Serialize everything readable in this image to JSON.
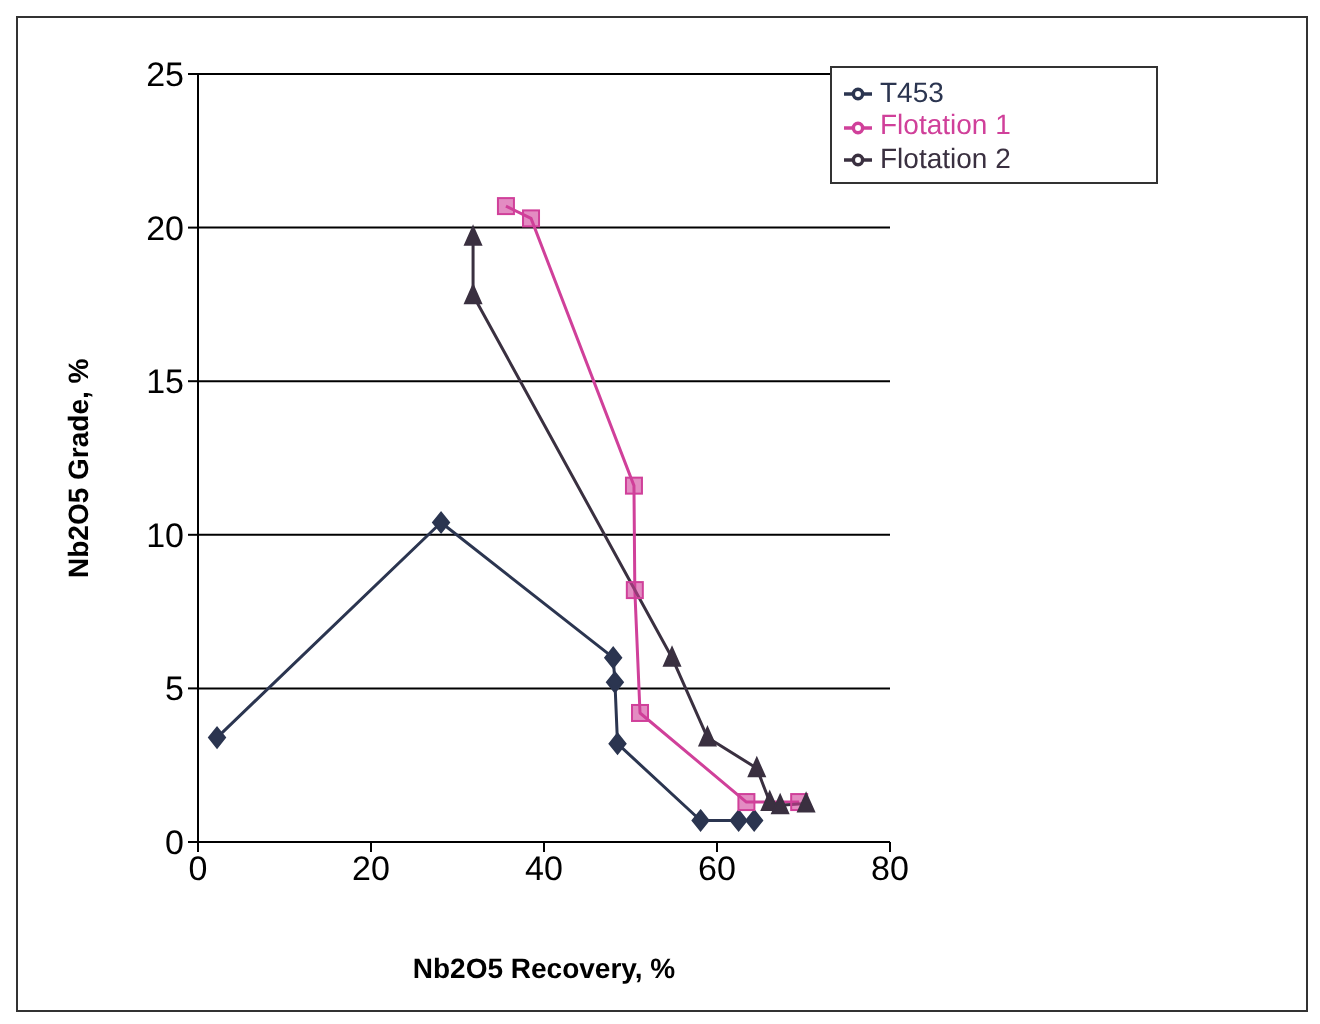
{
  "chart_data": {
    "type": "line",
    "xlabel": "Nb2O5 Recovery, %",
    "ylabel": "Nb2O5 Grade, %",
    "xlim": [
      0,
      80
    ],
    "xticks": [
      0,
      20,
      40,
      60,
      80
    ],
    "ylim": [
      0,
      25
    ],
    "yticks": [
      0,
      5,
      10,
      15,
      20,
      25
    ],
    "grid": "y",
    "legend": "top right",
    "series": [
      {
        "name": "T453",
        "color": "#2b3550",
        "marker": "diamond",
        "x": [
          2.2,
          28.1,
          48.0,
          48.2,
          48.5,
          58.1,
          62.5,
          64.3
        ],
        "values": [
          3.4,
          10.4,
          6.0,
          5.2,
          3.2,
          0.7,
          0.7,
          0.7
        ]
      },
      {
        "name": "Flotation 1",
        "color": "#d0409a",
        "marker": "square",
        "x": [
          35.6,
          38.5,
          50.4,
          50.5,
          51.1,
          63.4,
          69.5
        ],
        "values": [
          20.7,
          20.3,
          11.6,
          8.2,
          4.2,
          1.3,
          1.3
        ]
      },
      {
        "name": "Flotation 2",
        "color": "#3a3040",
        "marker": "triangle",
        "x": [
          31.8,
          31.8,
          54.8,
          58.9,
          64.6,
          66.1,
          67.3,
          70.3
        ],
        "values": [
          19.7,
          17.8,
          6.0,
          3.4,
          2.4,
          1.3,
          1.2,
          1.25
        ]
      }
    ]
  }
}
